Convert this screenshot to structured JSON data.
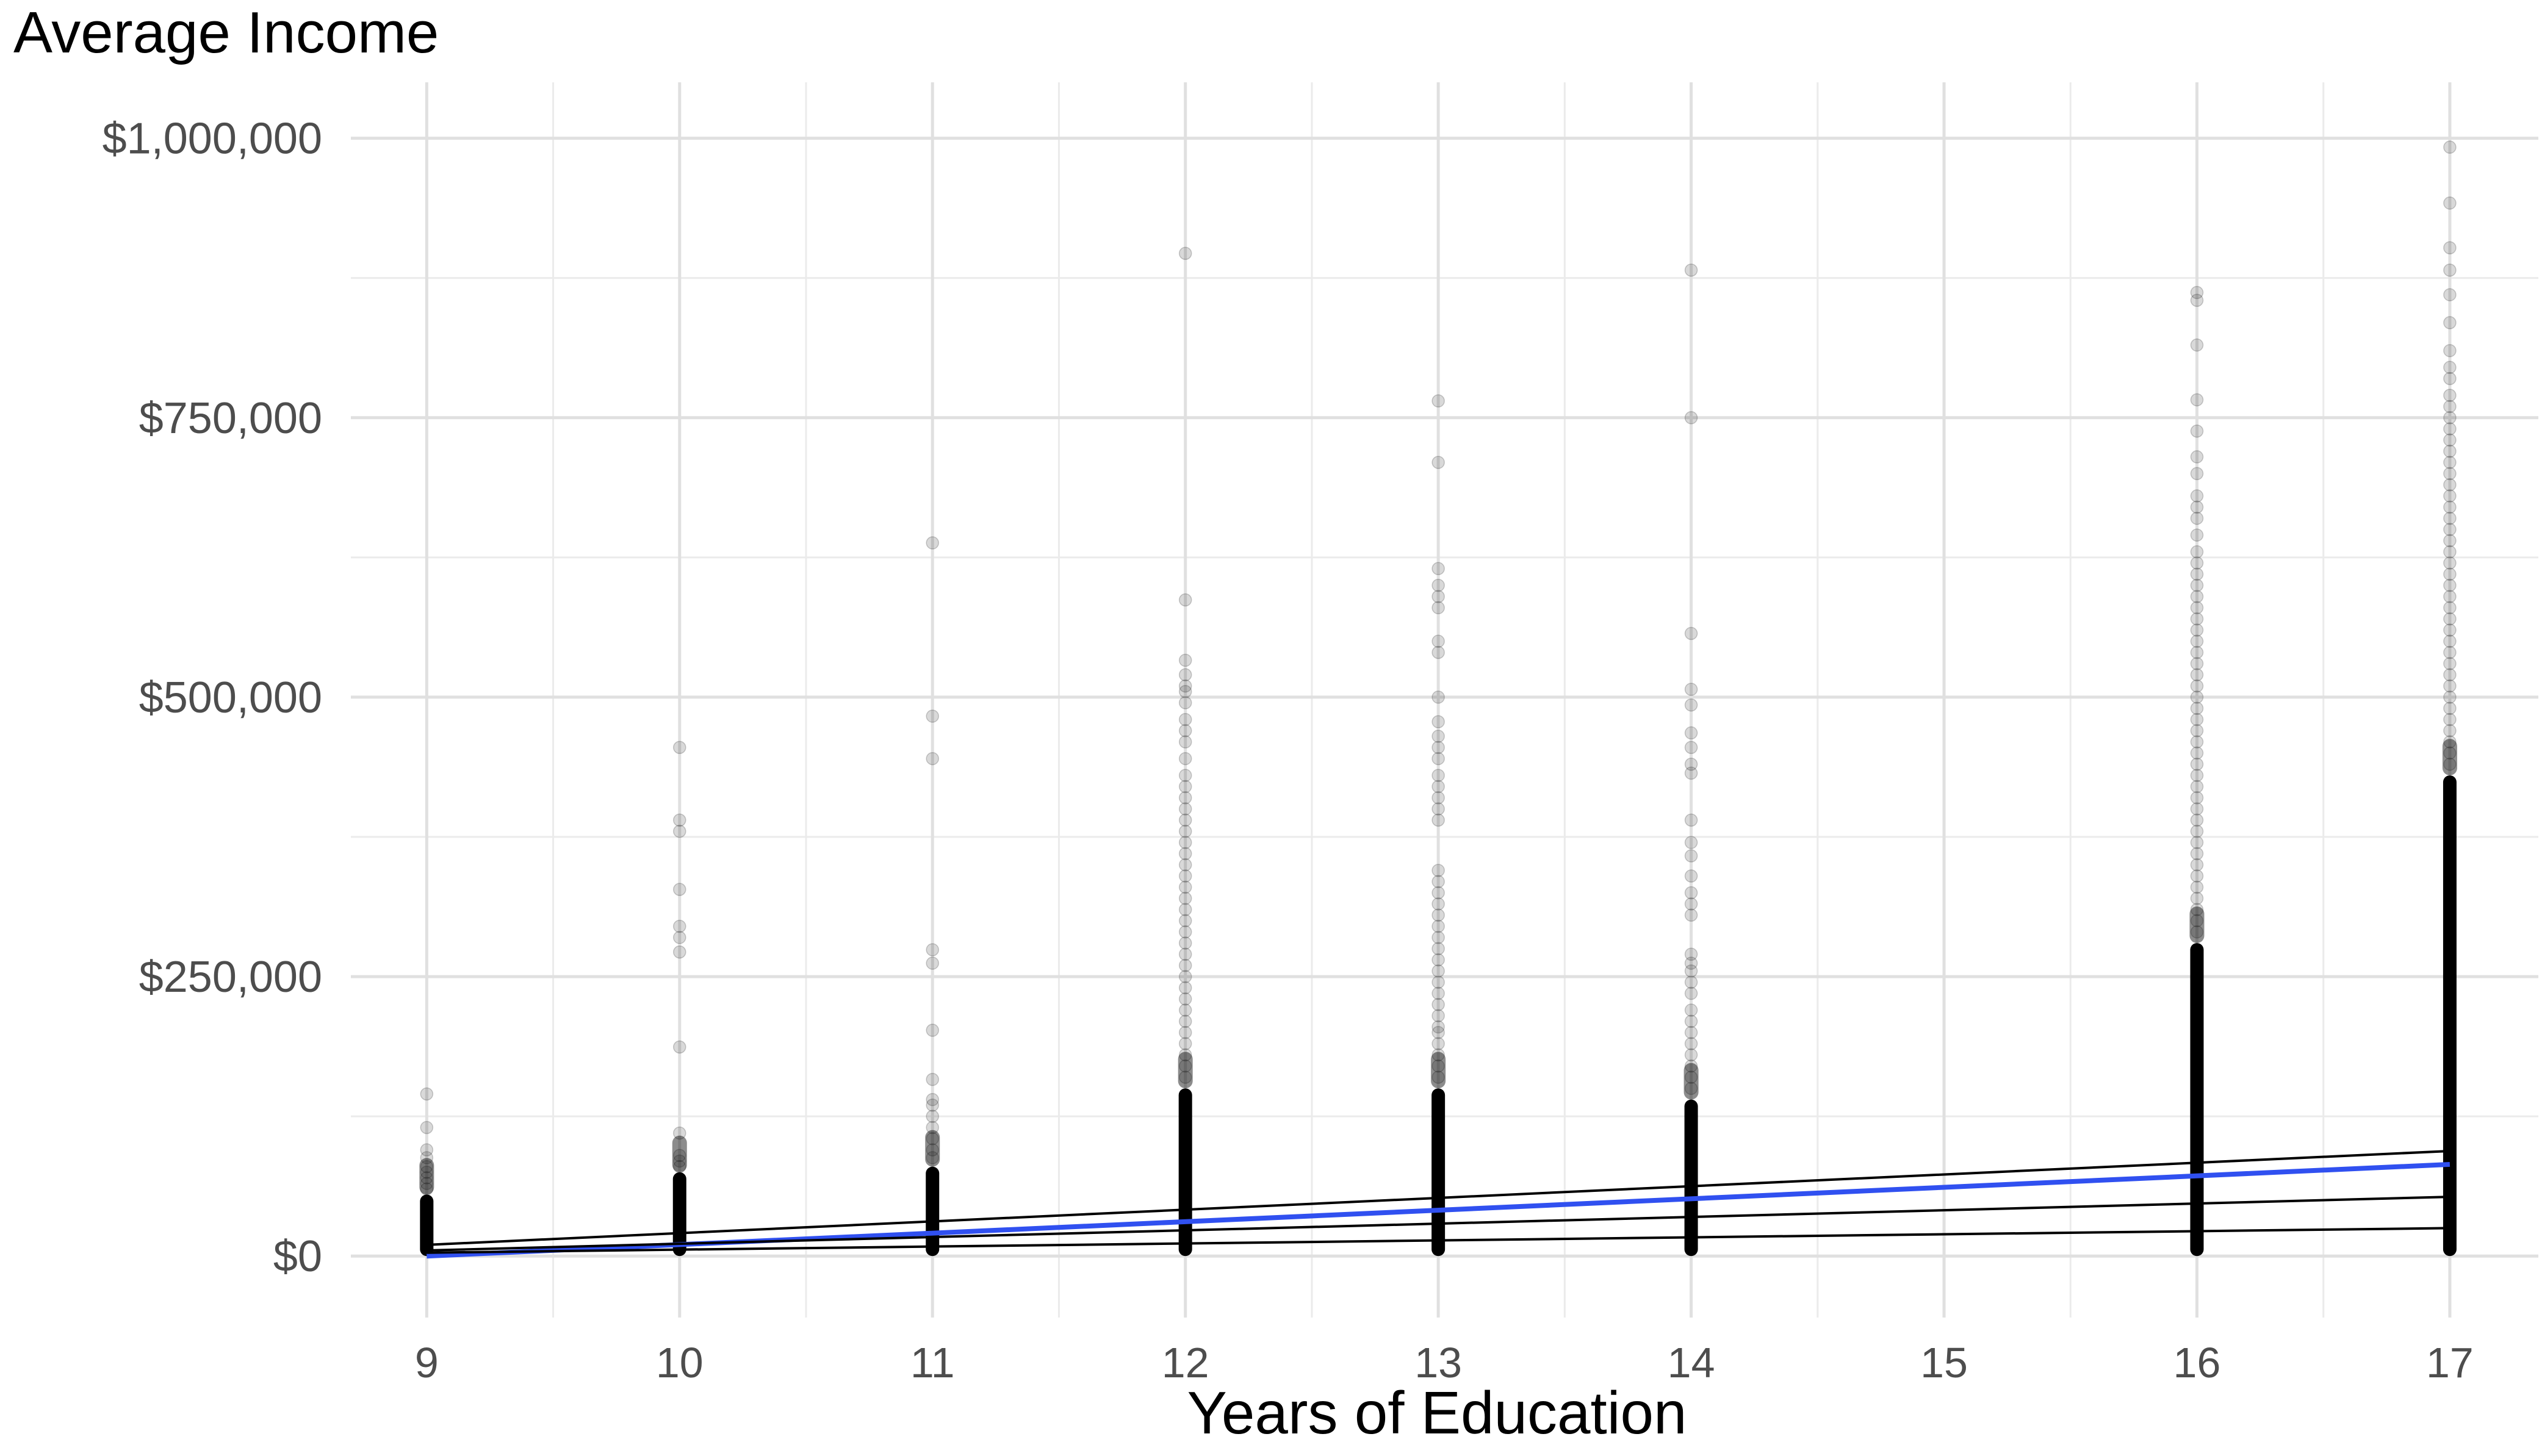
{
  "chart_data": {
    "type": "scatter",
    "title": "Average Income",
    "xlabel": "Years of Education",
    "ylabel": "",
    "xlim": [
      8.7,
      17.35
    ],
    "ylim": [
      -55000,
      1050000
    ],
    "x_ticks": [
      9,
      10,
      11,
      12,
      13,
      14,
      15,
      16,
      17
    ],
    "y_ticks": [
      0,
      250000,
      500000,
      750000,
      1000000
    ],
    "y_tick_labels": [
      "$0",
      "$250,000",
      "$500,000",
      "$750,000",
      "$1,000,000"
    ],
    "grid": true,
    "legend": "none",
    "point_color": "#000000",
    "point_opacity": 0.15,
    "dense_ranges": [
      {
        "x": 9,
        "y_max": 55000
      },
      {
        "x": 10,
        "y_max": 75000
      },
      {
        "x": 11,
        "y_max": 80000
      },
      {
        "x": 12,
        "y_max": 150000
      },
      {
        "x": 13,
        "y_max": 150000
      },
      {
        "x": 14,
        "y_max": 140000
      },
      {
        "x": 16,
        "y_max": 280000
      },
      {
        "x": 17,
        "y_max": 430000
      }
    ],
    "outliers": [
      {
        "x": 9,
        "y": [
          145000,
          115000,
          95000,
          88000,
          80000,
          75000,
          70000,
          65000,
          60000
        ]
      },
      {
        "x": 10,
        "y": [
          455000,
          390000,
          380000,
          328000,
          295000,
          285000,
          272000,
          187000,
          110000,
          90000,
          85000,
          80000
        ]
      },
      {
        "x": 11,
        "y": [
          638000,
          483000,
          445000,
          274000,
          262000,
          202000,
          158000,
          140000,
          135000,
          125000,
          115000,
          105000,
          95000,
          88000
        ]
      },
      {
        "x": 12,
        "y": [
          897000,
          587000,
          533000,
          520000,
          510000,
          505000,
          495000,
          480000,
          470000,
          460000,
          445000,
          430000,
          420000,
          410000,
          400000,
          390000,
          380000,
          370000,
          360000,
          350000,
          340000,
          330000,
          320000,
          310000,
          300000,
          290000,
          280000,
          270000,
          260000,
          250000,
          240000,
          230000,
          220000,
          210000,
          200000,
          190000,
          180000,
          170000,
          160000
        ]
      },
      {
        "x": 13,
        "y": [
          765000,
          710000,
          615000,
          600000,
          590000,
          580000,
          550000,
          540000,
          500000,
          478000,
          465000,
          455000,
          445000,
          430000,
          420000,
          410000,
          400000,
          390000,
          345000,
          335000,
          325000,
          315000,
          305000,
          295000,
          285000,
          275000,
          265000,
          255000,
          245000,
          235000,
          225000,
          215000,
          205000,
          200000,
          190000,
          180000,
          170000,
          160000
        ]
      },
      {
        "x": 14,
        "y": [
          882000,
          750000,
          557000,
          507000,
          493000,
          468000,
          455000,
          440000,
          432000,
          390000,
          370000,
          358000,
          340000,
          325000,
          315000,
          305000,
          270000,
          262000,
          255000,
          245000,
          235000,
          220000,
          210000,
          200000,
          190000,
          180000,
          170000,
          160000,
          150000
        ]
      },
      {
        "x": 16,
        "y": [
          862000,
          855000,
          815000,
          766000,
          738000,
          715000,
          700000,
          680000,
          670000,
          660000,
          645000,
          630000,
          620000,
          610000,
          600000,
          590000,
          580000,
          570000,
          560000,
          550000,
          540000,
          530000,
          520000,
          510000,
          500000,
          490000,
          480000,
          470000,
          460000,
          450000,
          440000,
          430000,
          420000,
          410000,
          400000,
          390000,
          380000,
          370000,
          360000,
          350000,
          340000,
          330000,
          320000,
          310000,
          300000,
          290000
        ]
      },
      {
        "x": 17,
        "y": [
          992000,
          942000,
          902000,
          882000,
          860000,
          835000,
          810000,
          795000,
          785000,
          770000,
          760000,
          750000,
          740000,
          730000,
          720000,
          710000,
          700000,
          690000,
          680000,
          670000,
          660000,
          650000,
          640000,
          630000,
          620000,
          610000,
          600000,
          590000,
          580000,
          570000,
          560000,
          550000,
          540000,
          530000,
          520000,
          510000,
          500000,
          490000,
          480000,
          470000,
          460000,
          450000,
          440000
        ]
      }
    ],
    "lines": [
      {
        "color": "#3050f0",
        "x": [
          9,
          17
        ],
        "y": [
          0,
          82000
        ]
      },
      {
        "color": "#000000",
        "x": [
          9,
          17
        ],
        "y": [
          10000,
          94000
        ]
      },
      {
        "color": "#000000",
        "x": [
          9,
          17
        ],
        "y": [
          5000,
          53000
        ]
      },
      {
        "color": "#000000",
        "x": [
          9,
          17
        ],
        "y": [
          3000,
          25000
        ]
      }
    ]
  }
}
